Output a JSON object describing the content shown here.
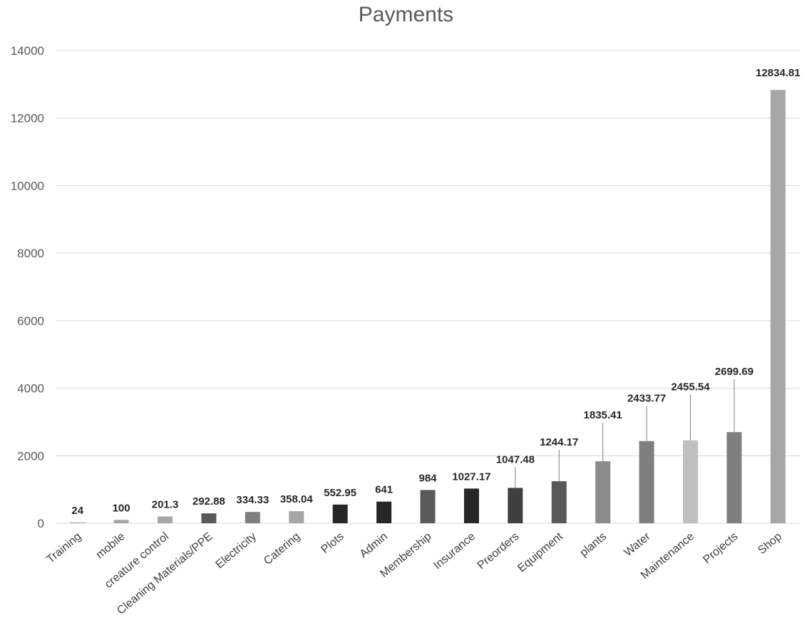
{
  "chart_data": {
    "type": "bar",
    "title": "Payments",
    "xlabel": "",
    "ylabel": "",
    "ylim": [
      0,
      14000
    ],
    "yticks": [
      0,
      2000,
      4000,
      6000,
      8000,
      10000,
      12000,
      14000
    ],
    "grid": true,
    "legend": "none",
    "categories": [
      "Training",
      "mobile",
      "creature control",
      "Cleaning Materials/PPE",
      "Electricity",
      "Catering",
      "Plots",
      "Admin",
      "Membership",
      "Insurance",
      "Preorders",
      "Equipment",
      "plants",
      "Water",
      "Maintenance",
      "Projects",
      "Shop"
    ],
    "values": [
      24,
      100,
      201.3,
      292.88,
      334.33,
      358.04,
      552.95,
      641,
      984,
      1027.17,
      1047.48,
      1244.17,
      1835.41,
      2433.77,
      2455.54,
      2699.69,
      12834.81
    ],
    "data_labels": [
      "24",
      "100",
      "201.3",
      "292.88",
      "334.33",
      "358.04",
      "552.95",
      "641",
      "984",
      "1027.17",
      "1047.48",
      "1244.17",
      "1835.41",
      "2433.77",
      "2455.54",
      "2699.69",
      "12834.81"
    ],
    "colors": [
      "#a6a6a6",
      "#a6a6a6",
      "#a6a6a6",
      "#595959",
      "#7f7f7f",
      "#a6a6a6",
      "#262626",
      "#262626",
      "#595959",
      "#262626",
      "#404040",
      "#595959",
      "#8c8c8c",
      "#7f7f7f",
      "#bfbfbf",
      "#7f7f7f",
      "#a6a6a6"
    ]
  }
}
